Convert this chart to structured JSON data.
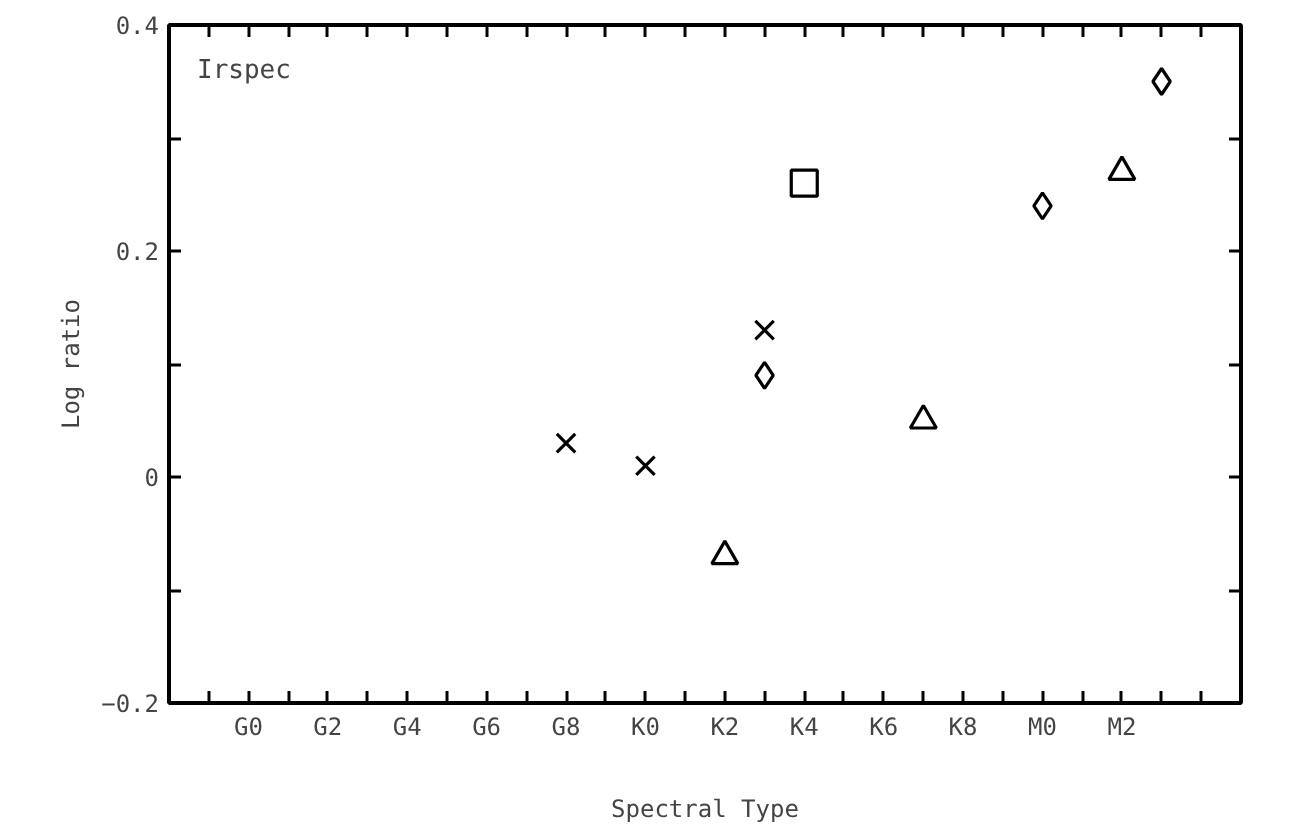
{
  "chart_data": {
    "type": "scatter",
    "xlabel": "Spectral Type",
    "ylabel": "Log ratio",
    "annotations": [
      "Irspec"
    ],
    "categories": [
      null,
      "G0",
      null,
      "G2",
      null,
      "G4",
      null,
      "G6",
      null,
      "G8",
      null,
      "K0",
      null,
      "K2",
      null,
      "K4",
      null,
      "K6",
      null,
      "K8",
      null,
      "M0",
      null,
      "M2",
      null,
      null
    ],
    "ylim": [
      -0.2,
      0.4
    ],
    "yticks": [
      -0.2,
      {
        "value": -0.1,
        "label": null
      },
      0,
      {
        "value": 0.1,
        "label": null
      },
      0.2,
      {
        "value": 0.3,
        "label": null
      },
      0.4
    ],
    "series": [
      {
        "color": "#000000",
        "marker": "cross",
        "values": [
          null,
          null,
          null,
          null,
          null,
          null,
          null,
          null,
          null,
          0.03,
          null,
          null,
          null,
          null,
          0.13,
          null,
          null,
          null,
          null,
          null,
          null,
          null,
          null,
          null,
          null,
          null
        ]
      },
      {
        "color": "#000000",
        "marker": "cross",
        "values": [
          null,
          null,
          null,
          null,
          null,
          null,
          null,
          null,
          null,
          null,
          null,
          0.01,
          null,
          null,
          null,
          null,
          null,
          null,
          null,
          null,
          null,
          null,
          null,
          null,
          null,
          null
        ]
      },
      {
        "color": "#000000",
        "marker": "triangle",
        "values": [
          null,
          null,
          null,
          null,
          null,
          null,
          null,
          null,
          null,
          null,
          null,
          null,
          null,
          -0.07,
          null,
          null,
          null,
          null,
          null,
          null,
          null,
          null,
          null,
          0.27,
          null,
          null
        ]
      },
      {
        "color": "#000000",
        "marker": "diamond",
        "values": [
          null,
          null,
          null,
          null,
          null,
          null,
          null,
          null,
          null,
          null,
          null,
          null,
          null,
          null,
          0.09,
          null,
          null,
          null,
          null,
          null,
          null,
          null,
          null,
          null,
          null,
          null
        ]
      },
      {
        "color": "#000000",
        "marker": "square",
        "values": [
          null,
          null,
          null,
          null,
          null,
          null,
          null,
          null,
          null,
          null,
          null,
          null,
          null,
          null,
          null,
          0.26,
          null,
          null,
          null,
          null,
          null,
          null,
          null,
          null,
          null,
          null
        ]
      },
      {
        "color": "#000000",
        "marker": "triangle",
        "values": [
          null,
          null,
          null,
          null,
          null,
          null,
          null,
          null,
          null,
          null,
          null,
          null,
          null,
          null,
          null,
          null,
          null,
          null,
          0.05,
          null,
          null,
          null,
          null,
          null,
          null,
          null
        ]
      },
      {
        "color": "#000000",
        "marker": "diamond",
        "values": [
          null,
          null,
          null,
          null,
          null,
          null,
          null,
          null,
          null,
          null,
          null,
          null,
          null,
          null,
          null,
          null,
          null,
          null,
          null,
          null,
          null,
          0.24,
          null,
          null,
          0.35,
          null
        ]
      }
    ]
  }
}
